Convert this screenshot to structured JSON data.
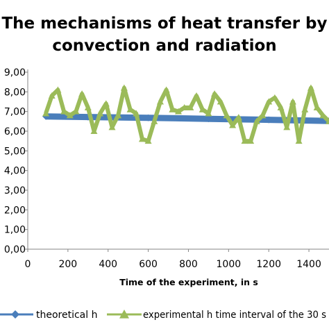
{
  "chart_data": {
    "type": "line",
    "title_lines": [
      "The mechanisms of heat transfer by",
      "convection and radiation"
    ],
    "xlabel": "Time of the experiment, in s",
    "ylabel": "",
    "xlim": [
      0,
      1500
    ],
    "ylim": [
      0,
      9
    ],
    "x_ticks": [
      0,
      200,
      400,
      600,
      800,
      1000,
      1200,
      1400
    ],
    "y_ticks": [
      0,
      1,
      2,
      3,
      4,
      5,
      6,
      7,
      8,
      9
    ],
    "y_tick_labels": [
      "0,00",
      "1,00",
      "2,00",
      "3,00",
      "4,00",
      "5,00",
      "6,00",
      "7,00",
      "8,00",
      "9,00"
    ],
    "grid": false,
    "legend_position": "bottom",
    "series": [
      {
        "name": "theoretical h",
        "color": "#4A7EBB",
        "marker": "diamond",
        "x": [
          90,
          300,
          600,
          900,
          1200,
          1500
        ],
        "y": [
          6.75,
          6.72,
          6.68,
          6.63,
          6.58,
          6.52
        ]
      },
      {
        "name": "experimental h time interval of the 30 s",
        "color": "#9BBB59",
        "marker": "triangle",
        "x": [
          90,
          120,
          150,
          180,
          210,
          240,
          270,
          300,
          330,
          360,
          390,
          420,
          450,
          480,
          510,
          540,
          570,
          600,
          630,
          660,
          690,
          720,
          750,
          780,
          810,
          840,
          870,
          900,
          930,
          960,
          990,
          1020,
          1050,
          1080,
          1110,
          1140,
          1170,
          1200,
          1230,
          1260,
          1290,
          1320,
          1350,
          1380,
          1410,
          1440,
          1470,
          1500
        ],
        "y": [
          6.9,
          7.8,
          8.1,
          7.0,
          6.8,
          7.0,
          7.9,
          7.2,
          6.0,
          6.9,
          7.4,
          6.2,
          6.8,
          8.2,
          7.1,
          6.9,
          5.6,
          5.5,
          6.5,
          7.5,
          8.1,
          7.1,
          7.0,
          7.2,
          7.2,
          7.8,
          7.1,
          6.9,
          7.9,
          7.5,
          6.8,
          6.3,
          6.7,
          5.5,
          5.5,
          6.5,
          6.8,
          7.5,
          7.7,
          7.2,
          6.2,
          7.5,
          5.5,
          7.1,
          8.2,
          7.2,
          6.8,
          6.5
        ]
      }
    ]
  }
}
